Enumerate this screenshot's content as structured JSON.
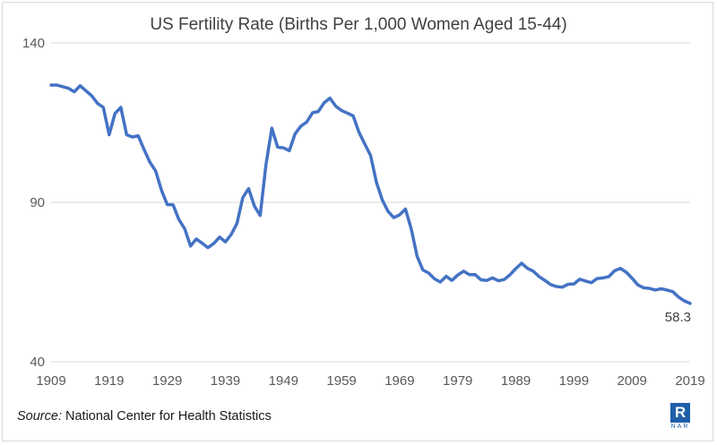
{
  "chart_data": {
    "type": "line",
    "title": "US Fertility Rate  (Births Per 1,000 Women Aged 15-44)",
    "xlabel": "",
    "ylabel": "",
    "xlim": [
      1909,
      2019
    ],
    "ylim": [
      40,
      140
    ],
    "x_ticks": [
      "1909",
      "1919",
      "1929",
      "1939",
      "1949",
      "1959",
      "1969",
      "1979",
      "1989",
      "1999",
      "2009",
      "2019"
    ],
    "y_ticks": [
      "40",
      "90",
      "140"
    ],
    "grid": "horizontal",
    "line_color": "#4472c4",
    "x": [
      1909,
      1910,
      1911,
      1912,
      1913,
      1914,
      1915,
      1916,
      1917,
      1918,
      1919,
      1920,
      1921,
      1922,
      1923,
      1924,
      1925,
      1926,
      1927,
      1928,
      1929,
      1930,
      1931,
      1932,
      1933,
      1934,
      1935,
      1936,
      1937,
      1938,
      1939,
      1940,
      1941,
      1942,
      1943,
      1944,
      1945,
      1946,
      1947,
      1948,
      1949,
      1950,
      1951,
      1952,
      1953,
      1954,
      1955,
      1956,
      1957,
      1958,
      1959,
      1960,
      1961,
      1962,
      1963,
      1964,
      1965,
      1966,
      1967,
      1968,
      1969,
      1970,
      1971,
      1972,
      1973,
      1974,
      1975,
      1976,
      1977,
      1978,
      1979,
      1980,
      1981,
      1982,
      1983,
      1984,
      1985,
      1986,
      1987,
      1988,
      1989,
      1990,
      1991,
      1992,
      1993,
      1994,
      1995,
      1996,
      1997,
      1998,
      1999,
      2000,
      2001,
      2002,
      2003,
      2004,
      2005,
      2006,
      2007,
      2008,
      2009,
      2010,
      2011,
      2012,
      2013,
      2014,
      2015,
      2016,
      2017,
      2018,
      2019
    ],
    "series": [
      {
        "values": [
          126.8,
          126.8,
          126.3,
          125.8,
          124.7,
          126.6,
          125.0,
          123.4,
          121.0,
          119.8,
          111.2,
          117.9,
          119.8,
          111.2,
          110.5,
          110.9,
          106.6,
          102.6,
          99.8,
          93.8,
          89.3,
          89.2,
          84.6,
          81.7,
          76.3,
          78.5,
          77.2,
          75.8,
          77.1,
          79.1,
          77.6,
          79.9,
          83.4,
          91.5,
          94.3,
          88.8,
          85.9,
          101.9,
          113.3,
          107.3,
          107.1,
          106.2,
          111.5,
          113.9,
          115.2,
          118.1,
          118.5,
          121.2,
          122.7,
          120.2,
          118.8,
          118.0,
          117.1,
          112.0,
          108.3,
          104.7,
          96.3,
          90.8,
          87.2,
          85.2,
          86.1,
          87.9,
          81.6,
          73.1,
          68.8,
          67.8,
          66.0,
          65.0,
          66.8,
          65.5,
          67.2,
          68.4,
          67.3,
          67.3,
          65.7,
          65.5,
          66.3,
          65.4,
          65.8,
          67.3,
          69.2,
          70.9,
          69.3,
          68.4,
          66.7,
          65.5,
          64.2,
          63.6,
          63.4,
          64.3,
          64.4,
          65.9,
          65.3,
          64.8,
          66.1,
          66.3,
          66.7,
          68.5,
          69.3,
          68.1,
          66.2,
          64.1,
          63.2,
          63.0,
          62.5,
          62.9,
          62.5,
          62.0,
          60.3,
          59.1,
          58.3
        ]
      }
    ],
    "end_label": "58.3"
  },
  "source": {
    "label": "Source:",
    "text": " National Center for Health Statistics"
  },
  "logo": {
    "letter": "R",
    "text": "NAR",
    "color": "#1f5fa8"
  }
}
